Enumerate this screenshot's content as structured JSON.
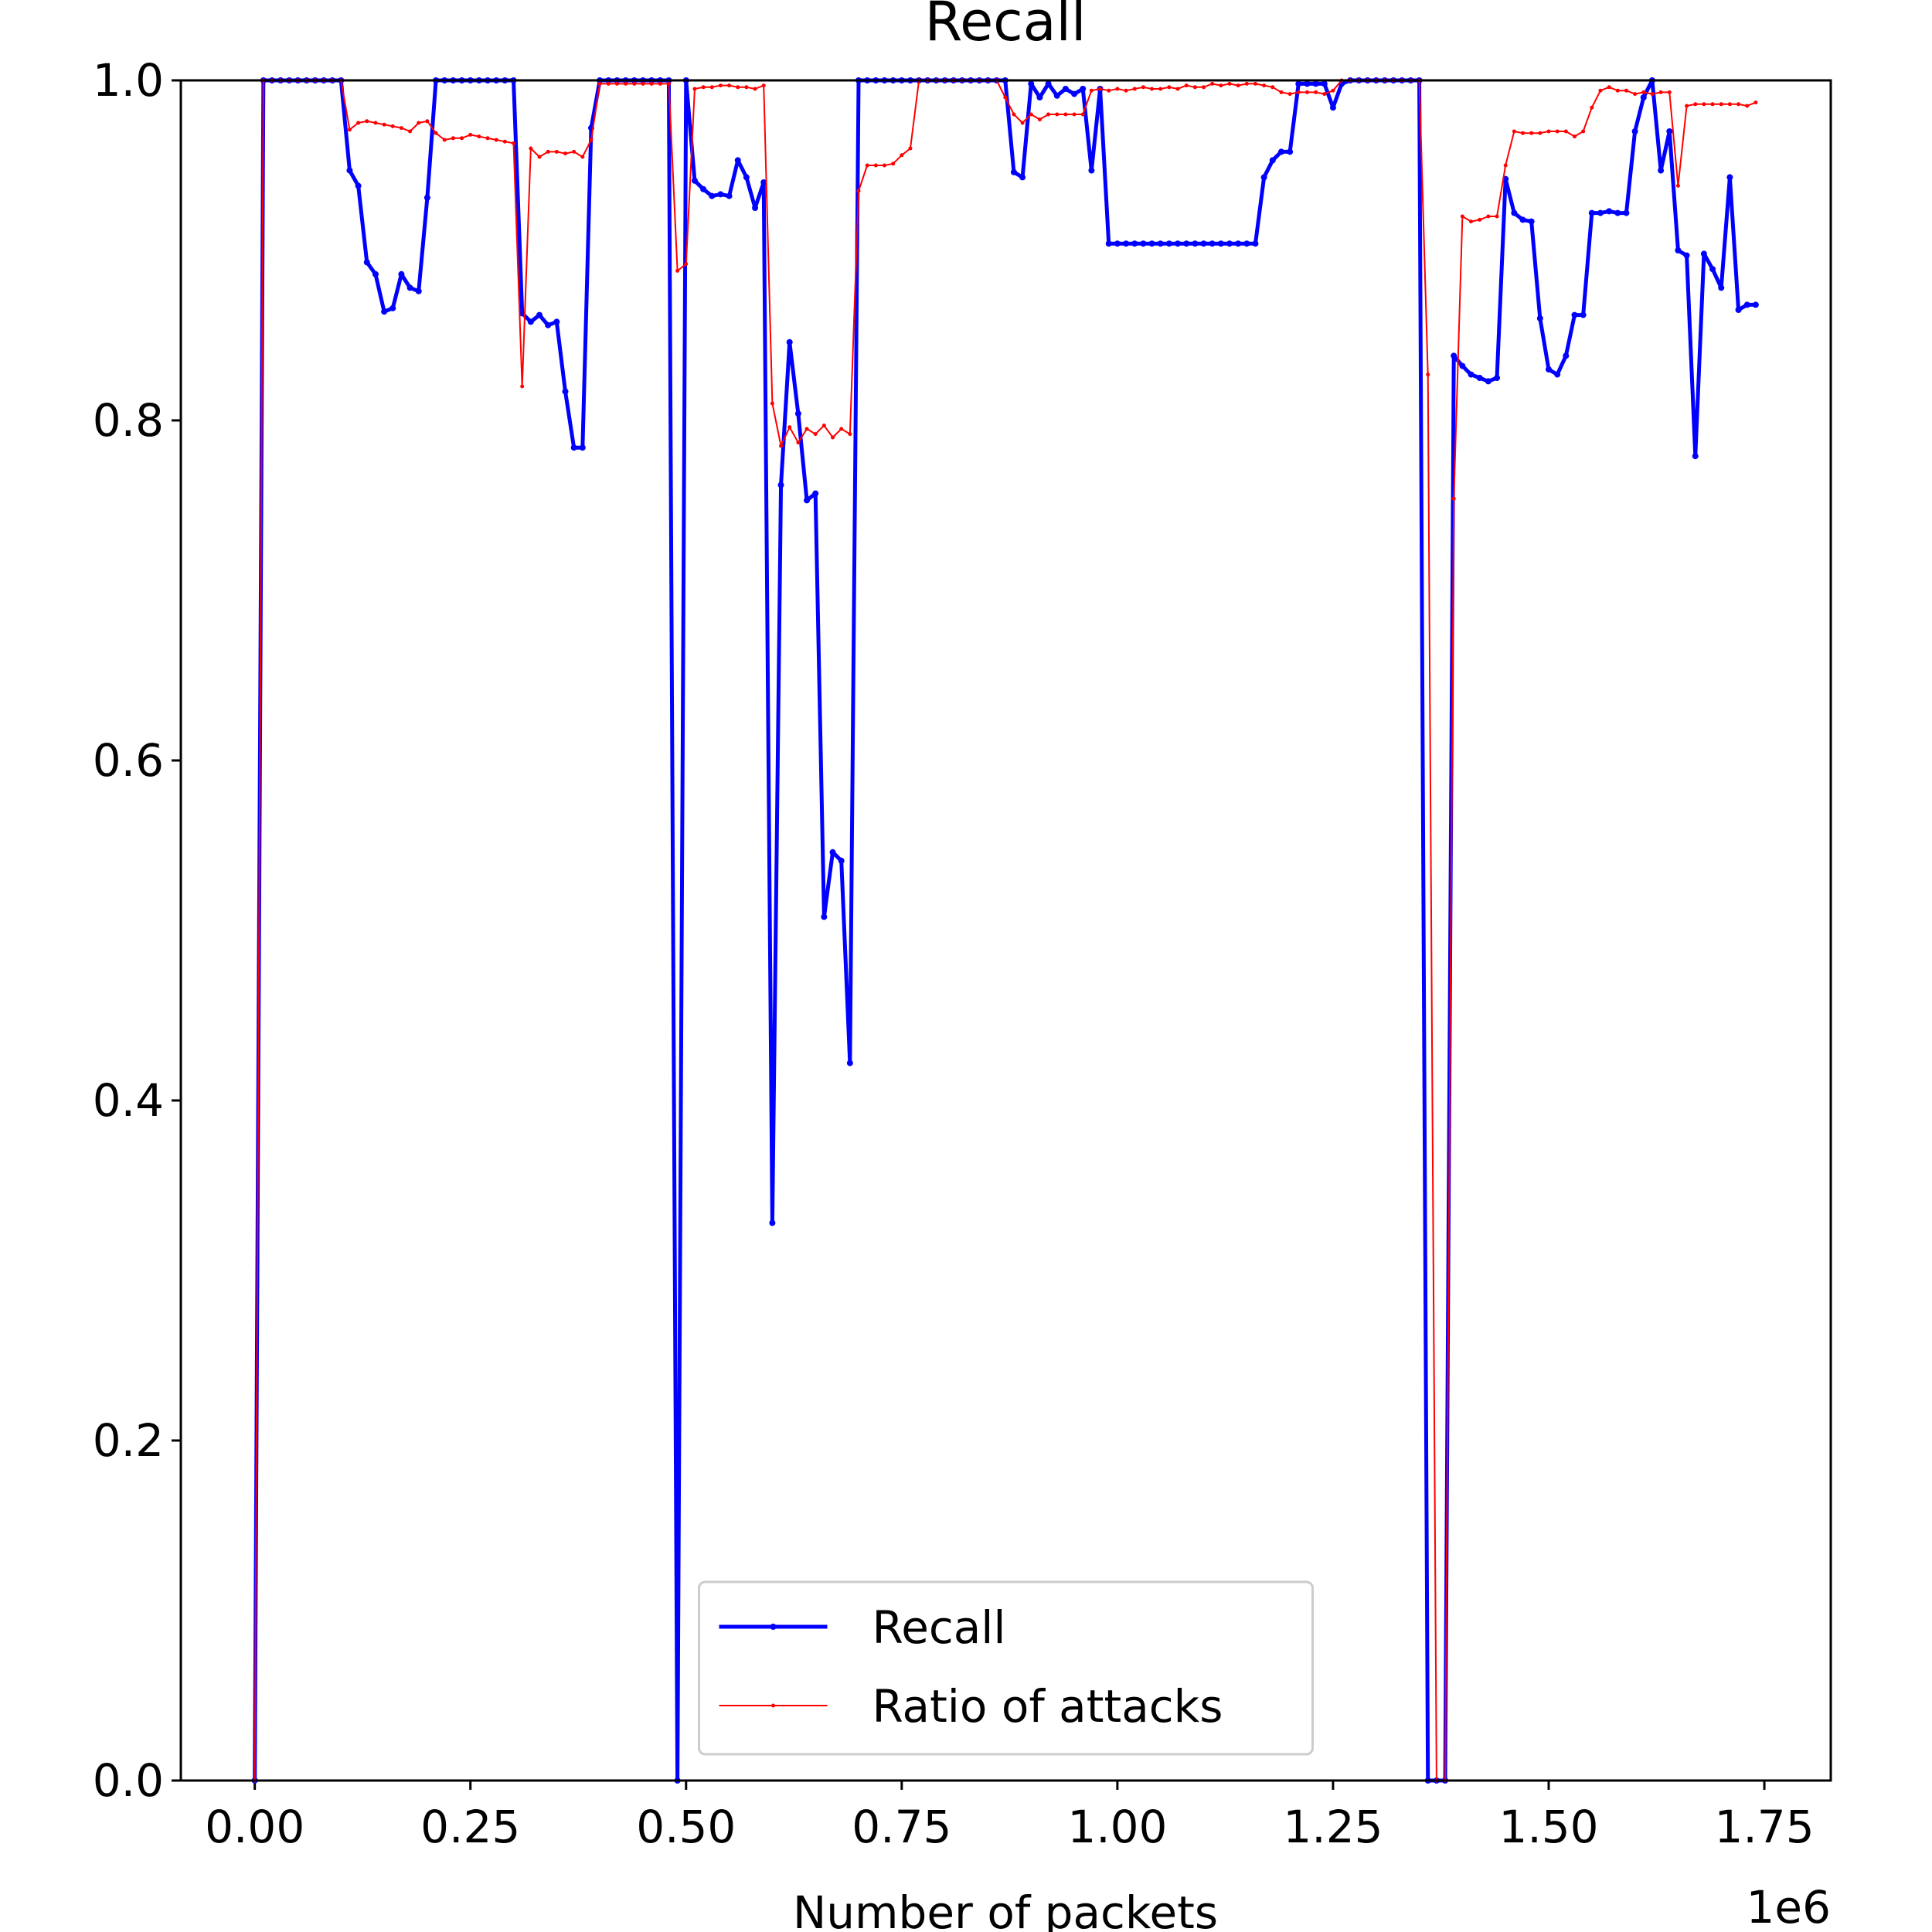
{
  "chart_data": {
    "type": "line",
    "title": "Recall",
    "x_label": "Number of packets",
    "x_offset_label": "1e6",
    "x": [
      0,
      0.01,
      0.02,
      0.03,
      0.04,
      0.05,
      0.06,
      0.07,
      0.08,
      0.09,
      0.1,
      0.11,
      0.12,
      0.13,
      0.14,
      0.15,
      0.16,
      0.17,
      0.18,
      0.19,
      0.2,
      0.21,
      0.22,
      0.23,
      0.24,
      0.25,
      0.26,
      0.27,
      0.28,
      0.29,
      0.3,
      0.31,
      0.32,
      0.33,
      0.34,
      0.35,
      0.36,
      0.37,
      0.38,
      0.39,
      0.4,
      0.41,
      0.42,
      0.43,
      0.44,
      0.45,
      0.46,
      0.47,
      0.48,
      0.49,
      0.5,
      0.51,
      0.52,
      0.53,
      0.54,
      0.55,
      0.56,
      0.57,
      0.58,
      0.59,
      0.6,
      0.61,
      0.62,
      0.63,
      0.64,
      0.65,
      0.66,
      0.67,
      0.68,
      0.69,
      0.7,
      0.71,
      0.72,
      0.73,
      0.74,
      0.75,
      0.76,
      0.77,
      0.78,
      0.79,
      0.8,
      0.81,
      0.82,
      0.83,
      0.84,
      0.85,
      0.86,
      0.87,
      0.88,
      0.89,
      0.9,
      0.91,
      0.92,
      0.93,
      0.94,
      0.95,
      0.96,
      0.97,
      0.98,
      0.99,
      1,
      1.01,
      1.02,
      1.03,
      1.04,
      1.05,
      1.06,
      1.07,
      1.08,
      1.09,
      1.1,
      1.11,
      1.12,
      1.13,
      1.14,
      1.15,
      1.16,
      1.17,
      1.18,
      1.19,
      1.2,
      1.21,
      1.22,
      1.23,
      1.24,
      1.25,
      1.26,
      1.27,
      1.28,
      1.29,
      1.3,
      1.31,
      1.32,
      1.33,
      1.34,
      1.35,
      1.36,
      1.37,
      1.38,
      1.39,
      1.4,
      1.41,
      1.42,
      1.43,
      1.44,
      1.45,
      1.46,
      1.47,
      1.48,
      1.49,
      1.5,
      1.51,
      1.52,
      1.53,
      1.54,
      1.55,
      1.56,
      1.57,
      1.58,
      1.59,
      1.6,
      1.61,
      1.62,
      1.63,
      1.64,
      1.65,
      1.66,
      1.67,
      1.68,
      1.69,
      1.7,
      1.71,
      1.72,
      1.73,
      1.74
    ],
    "series": [
      {
        "name": "Recall",
        "color": "#0000ff",
        "values": [
          0,
          1,
          1,
          1,
          1,
          1,
          1,
          1,
          1,
          1,
          1,
          0.947,
          0.938,
          0.893,
          0.886,
          0.864,
          0.866,
          0.886,
          0.878,
          0.876,
          0.931,
          1,
          1,
          1,
          1,
          1,
          1,
          1,
          1,
          1,
          1,
          0.863,
          0.858,
          0.862,
          0.856,
          0.858,
          0.817,
          0.784,
          0.784,
          0.972,
          1,
          1,
          1,
          1,
          1,
          1,
          1,
          1,
          1,
          0,
          1,
          0.941,
          0.936,
          0.932,
          0.933,
          0.932,
          0.953,
          0.943,
          0.925,
          0.94,
          0.328,
          0.762,
          0.846,
          0.804,
          0.753,
          0.757,
          0.508,
          0.546,
          0.541,
          0.422,
          1,
          1,
          1,
          1,
          1,
          1,
          1,
          1,
          1,
          1,
          1,
          1,
          1,
          1,
          1,
          1,
          1,
          1,
          0.946,
          0.943,
          0.998,
          0.99,
          0.998,
          0.991,
          0.995,
          0.992,
          0.995,
          0.947,
          0.995,
          0.904,
          0.904,
          0.904,
          0.904,
          0.904,
          0.904,
          0.904,
          0.904,
          0.904,
          0.904,
          0.904,
          0.904,
          0.904,
          0.904,
          0.904,
          0.904,
          0.904,
          0.904,
          0.943,
          0.953,
          0.958,
          0.958,
          0.998,
          0.998,
          0.998,
          0.998,
          0.984,
          0.998,
          1,
          1,
          1,
          1,
          1,
          1,
          1,
          1,
          1,
          0,
          0,
          0,
          0.838,
          0.832,
          0.827,
          0.825,
          0.823,
          0.825,
          0.942,
          0.922,
          0.918,
          0.917,
          0.86,
          0.83,
          0.827,
          0.838,
          0.862,
          0.862,
          0.922,
          0.922,
          0.923,
          0.922,
          0.922,
          0.97,
          0.99,
          1,
          0.947,
          0.97,
          0.9,
          0.897,
          0.779,
          0.898,
          0.889,
          0.878,
          0.943,
          0.865,
          0.868,
          0.868
        ]
      },
      {
        "name": "Ratio of attacks",
        "color": "#ff0000",
        "values": [
          0,
          1,
          1,
          1,
          1,
          1,
          1,
          1,
          1,
          1,
          1,
          0.971,
          0.975,
          0.976,
          0.975,
          0.974,
          0.973,
          0.972,
          0.97,
          0.975,
          0.976,
          0.969,
          0.965,
          0.966,
          0.966,
          0.968,
          0.967,
          0.966,
          0.965,
          0.964,
          0.963,
          0.82,
          0.96,
          0.955,
          0.958,
          0.958,
          0.957,
          0.958,
          0.955,
          0.965,
          0.998,
          0.998,
          0.998,
          0.998,
          0.998,
          0.998,
          0.998,
          0.998,
          0.998,
          0.888,
          0.892,
          0.995,
          0.996,
          0.996,
          0.997,
          0.997,
          0.996,
          0.996,
          0.995,
          0.997,
          0.81,
          0.785,
          0.796,
          0.787,
          0.795,
          0.792,
          0.797,
          0.79,
          0.795,
          0.792,
          0.935,
          0.95,
          0.95,
          0.95,
          0.951,
          0.956,
          0.96,
          1,
          1,
          1,
          1,
          1,
          1,
          1,
          1,
          1,
          1,
          0.99,
          0.98,
          0.975,
          0.98,
          0.977,
          0.98,
          0.98,
          0.98,
          0.98,
          0.98,
          0.994,
          0.995,
          0.994,
          0.995,
          0.994,
          0.995,
          0.996,
          0.995,
          0.995,
          0.996,
          0.995,
          0.997,
          0.996,
          0.996,
          0.998,
          0.997,
          0.998,
          0.997,
          0.998,
          0.998,
          0.997,
          0.996,
          0.993,
          0.992,
          0.993,
          0.993,
          0.993,
          0.992,
          0.994,
          1,
          1,
          1,
          1,
          1,
          1,
          1,
          1,
          1,
          1,
          0.827,
          0,
          0,
          0.754,
          0.92,
          0.917,
          0.918,
          0.92,
          0.92,
          0.95,
          0.97,
          0.969,
          0.969,
          0.969,
          0.97,
          0.97,
          0.97,
          0.967,
          0.97,
          0.984,
          0.994,
          0.996,
          0.994,
          0.994,
          0.992,
          0.993,
          0.992,
          0.993,
          0.993,
          0.938,
          0.985,
          0.986,
          0.986,
          0.986,
          0.986,
          0.986,
          0.986,
          0.985,
          0.987
        ]
      }
    ],
    "xlim": [
      -0.0857,
      1.827
    ],
    "ylim": [
      0,
      1
    ],
    "xticks": [
      {
        "value": 0,
        "label": "0.00"
      },
      {
        "value": 0.25,
        "label": "0.25"
      },
      {
        "value": 0.5,
        "label": "0.50"
      },
      {
        "value": 0.75,
        "label": "0.75"
      },
      {
        "value": 1,
        "label": "1.00"
      },
      {
        "value": 1.25,
        "label": "1.25"
      },
      {
        "value": 1.5,
        "label": "1.50"
      },
      {
        "value": 1.75,
        "label": "1.75"
      }
    ],
    "yticks": [
      {
        "value": 0,
        "label": "0.0"
      },
      {
        "value": 0.2,
        "label": "0.2"
      },
      {
        "value": 0.4,
        "label": "0.4"
      },
      {
        "value": 0.6,
        "label": "0.6"
      },
      {
        "value": 0.8,
        "label": "0.8"
      },
      {
        "value": 1,
        "label": "1.0"
      }
    ],
    "legend": "lower center"
  }
}
